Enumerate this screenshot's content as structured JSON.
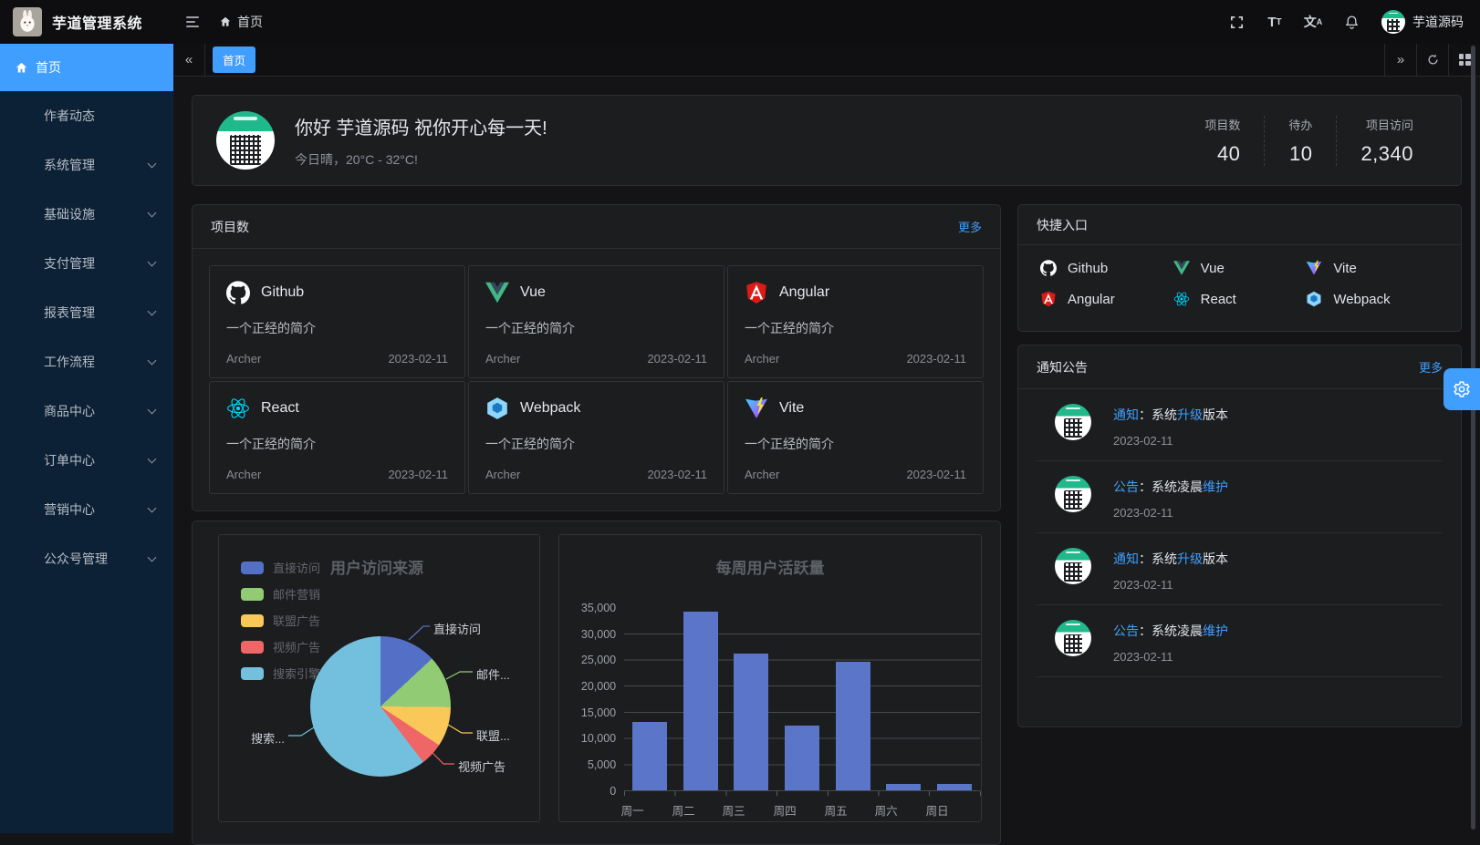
{
  "app": {
    "title": "芋道管理系统",
    "breadcrumb": "首页",
    "username": "芋道源码"
  },
  "sidebar": {
    "items": [
      {
        "label": "首页"
      },
      {
        "label": "作者动态"
      },
      {
        "label": "系统管理"
      },
      {
        "label": "基础设施"
      },
      {
        "label": "支付管理"
      },
      {
        "label": "报表管理"
      },
      {
        "label": "工作流程"
      },
      {
        "label": "商品中心"
      },
      {
        "label": "订单中心"
      },
      {
        "label": "营销中心"
      },
      {
        "label": "公众号管理"
      }
    ]
  },
  "tabbar": {
    "active_tab": "首页"
  },
  "welcome": {
    "greeting": "你好 芋道源码 祝你开心每一天!",
    "weather": "今日晴，20°C - 32°C!",
    "stats": [
      {
        "label": "项目数",
        "value": "40"
      },
      {
        "label": "待办",
        "value": "10"
      },
      {
        "label": "项目访问",
        "value": "2,340"
      }
    ]
  },
  "projects": {
    "title": "项目数",
    "more": "更多",
    "items": [
      {
        "name": "Github",
        "desc": "一个正经的简介",
        "author": "Archer",
        "date": "2023-02-11",
        "icon": "github-icon"
      },
      {
        "name": "Vue",
        "desc": "一个正经的简介",
        "author": "Archer",
        "date": "2023-02-11",
        "icon": "vue-icon"
      },
      {
        "name": "Angular",
        "desc": "一个正经的简介",
        "author": "Archer",
        "date": "2023-02-11",
        "icon": "angular-icon"
      },
      {
        "name": "React",
        "desc": "一个正经的简介",
        "author": "Archer",
        "date": "2023-02-11",
        "icon": "react-icon"
      },
      {
        "name": "Webpack",
        "desc": "一个正经的简介",
        "author": "Archer",
        "date": "2023-02-11",
        "icon": "webpack-icon"
      },
      {
        "name": "Vite",
        "desc": "一个正经的简介",
        "author": "Archer",
        "date": "2023-02-11",
        "icon": "vite-icon"
      }
    ]
  },
  "shortcuts": {
    "title": "快捷入口",
    "items": [
      {
        "label": "Github",
        "icon": "github-icon"
      },
      {
        "label": "Vue",
        "icon": "vue-icon"
      },
      {
        "label": "Vite",
        "icon": "vite-icon"
      },
      {
        "label": "Angular",
        "icon": "angular-icon"
      },
      {
        "label": "React",
        "icon": "react-icon"
      },
      {
        "label": "Webpack",
        "icon": "webpack-icon"
      }
    ]
  },
  "notices": {
    "title": "通知公告",
    "more": "更多",
    "items": [
      {
        "tag": "通知",
        "mid": "：系统",
        "highlight": "升级",
        "tail": "版本",
        "date": "2023-02-11"
      },
      {
        "tag": "公告",
        "mid": "：系统凌晨",
        "highlight": "维护",
        "tail": "",
        "date": "2023-02-11"
      },
      {
        "tag": "通知",
        "mid": "：系统",
        "highlight": "升级",
        "tail": "版本",
        "date": "2023-02-11"
      },
      {
        "tag": "公告",
        "mid": "：系统凌晨",
        "highlight": "维护",
        "tail": "",
        "date": "2023-02-11"
      }
    ]
  },
  "chart_data": [
    {
      "type": "pie",
      "title": "用户访问来源",
      "categories": [
        "直接访问",
        "邮件营销",
        "联盟广告",
        "视频广告",
        "搜索引擎"
      ],
      "values": [
        335,
        310,
        234,
        135,
        1548
      ],
      "colors": [
        "#5470c6",
        "#91cc75",
        "#fac858",
        "#ee6666",
        "#73c0de"
      ],
      "callouts": [
        "直接访问",
        "邮件...",
        "联盟...",
        "视频广告",
        "搜索..."
      ],
      "legend_position": "top-left"
    },
    {
      "type": "bar",
      "title": "每周用户活跃量",
      "categories": [
        "周一",
        "周二",
        "周三",
        "周四",
        "周五",
        "周六",
        "周日"
      ],
      "values": [
        13200,
        34300,
        26300,
        12400,
        24700,
        1300,
        1300
      ],
      "y_ticks": [
        "35,000",
        "30,000",
        "25,000",
        "20,000",
        "15,000",
        "10,000",
        "5,000",
        "0"
      ],
      "ylim": [
        0,
        35000
      ],
      "color": "#5b75c9",
      "grid": true
    }
  ]
}
